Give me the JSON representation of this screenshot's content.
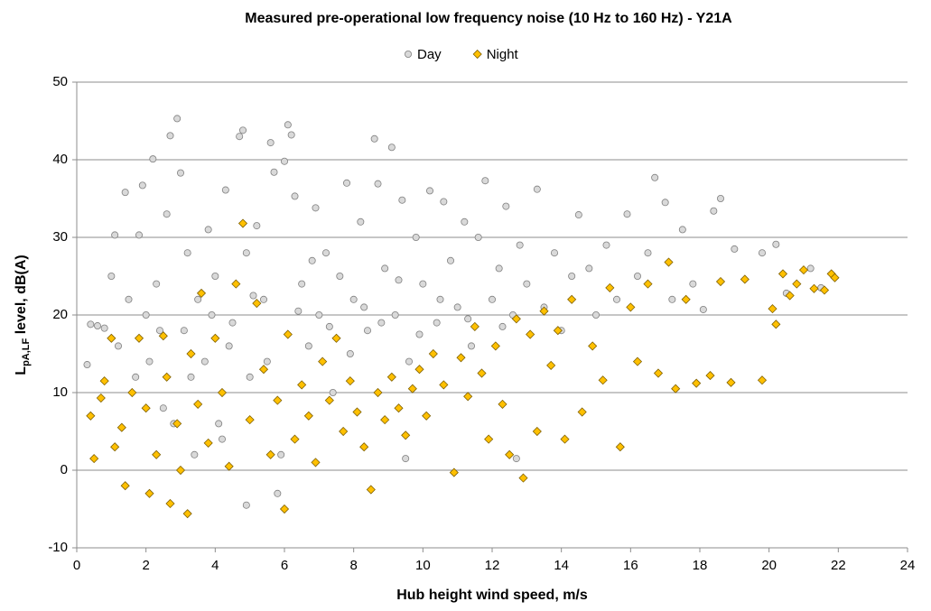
{
  "chart_data": {
    "type": "scatter",
    "title": "Measured pre-operational low frequency noise (10 Hz to 160 Hz) - Y21A",
    "x_label": "Hub height wind speed, m/s",
    "y_label": {
      "main": "L",
      "sub": "pA,LF",
      "rest": " level, dB(A)"
    },
    "xlim": [
      0,
      24
    ],
    "xticks": [
      0,
      2,
      4,
      6,
      8,
      10,
      12,
      14,
      16,
      18,
      20,
      22,
      24
    ],
    "ylim": [
      -10,
      50
    ],
    "yticks": [
      -10,
      0,
      10,
      20,
      30,
      40,
      50
    ],
    "grid": true,
    "legend": "top",
    "series": [
      {
        "name": "Day",
        "marker": "circle",
        "color": "#d9d9d9",
        "edge": "#808080",
        "x": [
          0.3,
          0.4,
          0.6,
          0.8,
          1.0,
          1.1,
          1.2,
          1.4,
          1.5,
          1.7,
          1.8,
          1.9,
          2.0,
          2.1,
          2.2,
          2.3,
          2.5,
          2.6,
          2.7,
          2.9,
          3.0,
          3.1,
          3.2,
          3.4,
          3.5,
          3.7,
          3.8,
          4.0,
          4.1,
          4.3,
          4.5,
          4.7,
          4.8,
          4.9,
          5.0,
          5.2,
          5.4,
          5.6,
          5.7,
          5.8,
          6.0,
          6.1,
          6.2,
          6.3,
          6.5,
          6.7,
          6.9,
          7.0,
          7.2,
          7.4,
          7.6,
          7.8,
          8.0,
          8.2,
          8.4,
          8.6,
          8.7,
          8.9,
          9.1,
          9.2,
          9.4,
          9.6,
          9.8,
          10.0,
          10.2,
          10.4,
          10.6,
          10.8,
          11.0,
          11.2,
          11.4,
          11.6,
          11.8,
          12.0,
          12.2,
          12.4,
          12.6,
          12.8,
          13.0,
          13.3,
          13.5,
          13.8,
          14.0,
          14.3,
          14.5,
          14.8,
          15.0,
          15.3,
          15.6,
          15.9,
          16.2,
          16.5,
          16.7,
          17.0,
          17.2,
          17.5,
          17.8,
          18.1,
          18.4,
          18.6,
          19.0,
          19.8,
          20.2,
          20.5,
          21.2,
          21.5,
          2.4,
          3.3,
          3.9,
          4.4,
          5.1,
          5.5,
          6.4,
          6.8,
          7.3,
          7.9,
          8.3,
          8.8,
          9.3,
          9.9,
          10.5,
          11.3,
          12.3,
          2.8,
          4.2,
          4.9,
          5.9,
          9.5,
          12.7
        ],
        "values": [
          13.6,
          18.8,
          18.6,
          18.3,
          25.0,
          30.3,
          16.0,
          35.8,
          22.0,
          12.0,
          30.3,
          36.7,
          20.0,
          14.0,
          40.1,
          24.0,
          8.0,
          33.0,
          43.1,
          45.3,
          38.3,
          18.0,
          28.0,
          2.0,
          22.0,
          14.0,
          31.0,
          25.0,
          6.0,
          36.1,
          19.0,
          43.0,
          43.8,
          28.0,
          12.0,
          31.5,
          22.0,
          42.2,
          38.4,
          -3.0,
          39.8,
          44.5,
          43.2,
          35.3,
          24.0,
          16.0,
          33.8,
          20.0,
          28.0,
          10.0,
          25.0,
          37.0,
          22.0,
          32.0,
          18.0,
          42.7,
          36.9,
          26.0,
          41.6,
          20.0,
          34.8,
          14.0,
          30.0,
          24.0,
          36.0,
          19.0,
          34.6,
          27.0,
          21.0,
          32.0,
          16.0,
          30.0,
          37.3,
          22.0,
          26.0,
          34.0,
          20.0,
          29.0,
          24.0,
          36.2,
          21.0,
          28.0,
          18.0,
          25.0,
          32.9,
          26.0,
          20.0,
          29.0,
          22.0,
          33.0,
          25.0,
          28.0,
          37.7,
          34.5,
          22.0,
          31.0,
          24.0,
          20.7,
          33.4,
          35.0,
          28.5,
          28.0,
          29.1,
          22.8,
          26.0,
          23.5,
          18.0,
          12.0,
          20.0,
          16.0,
          22.5,
          14.0,
          20.5,
          27.0,
          18.5,
          15.0,
          21.0,
          19.0,
          24.5,
          17.5,
          22.0,
          19.5,
          18.5,
          6.0,
          4.0,
          -4.5,
          2.0,
          1.5,
          1.5
        ]
      },
      {
        "name": "Night",
        "marker": "diamond",
        "color": "#ffc000",
        "edge": "#7f6000",
        "x": [
          0.4,
          0.5,
          0.7,
          0.8,
          1.0,
          1.1,
          1.3,
          1.4,
          1.6,
          1.8,
          2.0,
          2.1,
          2.3,
          2.5,
          2.6,
          2.7,
          2.9,
          3.0,
          3.2,
          3.3,
          3.5,
          3.6,
          3.8,
          4.0,
          4.2,
          4.4,
          4.6,
          4.8,
          5.0,
          5.2,
          5.4,
          5.6,
          5.8,
          6.0,
          6.1,
          6.3,
          6.5,
          6.7,
          6.9,
          7.1,
          7.3,
          7.5,
          7.7,
          7.9,
          8.1,
          8.3,
          8.5,
          8.7,
          8.9,
          9.1,
          9.3,
          9.5,
          9.7,
          9.9,
          10.1,
          10.3,
          10.6,
          10.9,
          11.1,
          11.3,
          11.5,
          11.7,
          11.9,
          12.1,
          12.3,
          12.5,
          12.7,
          12.9,
          13.1,
          13.3,
          13.5,
          13.7,
          13.9,
          14.1,
          14.3,
          14.6,
          14.9,
          15.2,
          15.4,
          15.7,
          16.0,
          16.2,
          16.5,
          16.8,
          17.1,
          17.3,
          17.6,
          17.9,
          18.3,
          18.6,
          18.9,
          19.3,
          19.8,
          20.1,
          20.2,
          20.4,
          20.6,
          20.8,
          21.0,
          21.3,
          21.6,
          21.8,
          21.9
        ],
        "values": [
          7.0,
          1.5,
          9.3,
          11.5,
          17.0,
          3.0,
          5.5,
          -2.0,
          10.0,
          17.0,
          8.0,
          -3.0,
          2.0,
          17.3,
          12.0,
          -4.3,
          6.0,
          0.0,
          -5.6,
          15.0,
          8.5,
          22.8,
          3.5,
          17.0,
          10.0,
          0.5,
          24.0,
          31.8,
          6.5,
          21.5,
          13.0,
          2.0,
          9.0,
          -5.0,
          17.5,
          4.0,
          11.0,
          7.0,
          1.0,
          14.0,
          9.0,
          17.0,
          5.0,
          11.5,
          7.5,
          3.0,
          -2.5,
          10.0,
          6.5,
          12.0,
          8.0,
          4.5,
          10.5,
          13.0,
          7.0,
          15.0,
          11.0,
          -0.3,
          14.5,
          9.5,
          18.5,
          12.5,
          4.0,
          16.0,
          8.5,
          2.0,
          19.5,
          -1.0,
          17.5,
          5.0,
          20.5,
          13.5,
          18.0,
          4.0,
          22.0,
          7.5,
          16.0,
          11.6,
          23.5,
          3.0,
          21.0,
          14.0,
          24.0,
          12.5,
          26.8,
          10.5,
          22.0,
          11.2,
          12.2,
          24.3,
          11.3,
          24.6,
          11.6,
          20.8,
          18.8,
          25.3,
          22.5,
          24.0,
          25.8,
          23.4,
          23.2,
          25.3,
          24.8
        ]
      }
    ]
  }
}
